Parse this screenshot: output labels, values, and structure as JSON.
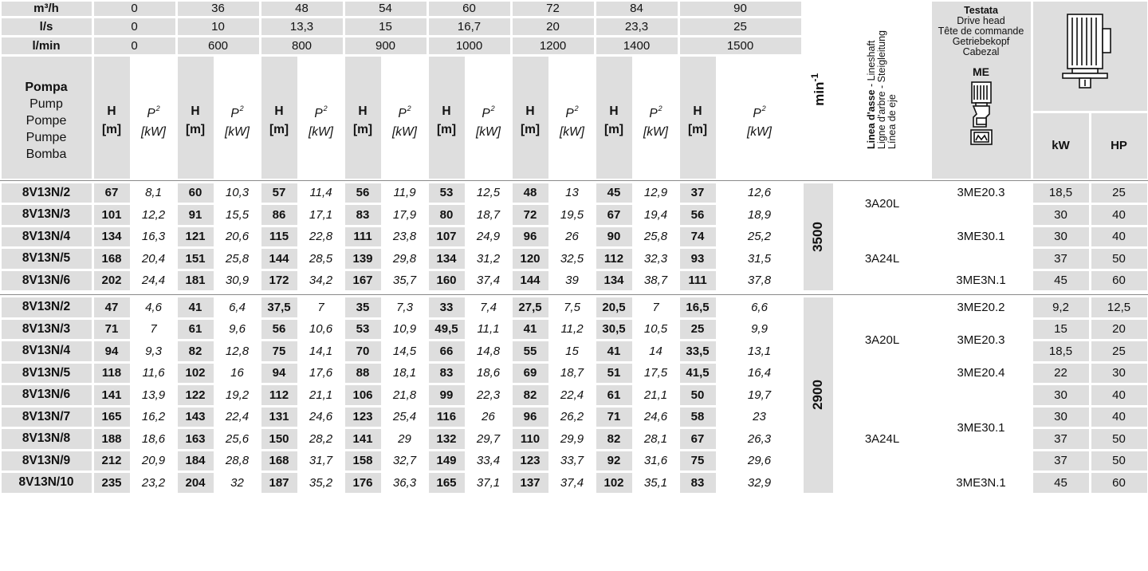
{
  "header": {
    "units": [
      "m³/h",
      "l/s",
      "l/min"
    ],
    "flow_values": [
      [
        "0",
        "36",
        "48",
        "54",
        "60",
        "72",
        "84",
        "90"
      ],
      [
        "0",
        "10",
        "13,3",
        "15",
        "16,7",
        "20",
        "23,3",
        "25"
      ],
      [
        "0",
        "600",
        "800",
        "900",
        "1000",
        "1200",
        "1400",
        "1500"
      ]
    ],
    "pump_label": {
      "title": "Pompa",
      "translations": [
        "Pump",
        "Pompe",
        "Pumpe",
        "Bomba"
      ]
    },
    "h_label": [
      "H",
      "[m]"
    ],
    "p_label": [
      "P",
      "2",
      "[kW]"
    ],
    "min_label": "min",
    "min_exp": "-1",
    "lineshaft": {
      "bold": "Linea d'asse",
      "line1_rest": " - Lineshaft",
      "line2": "Ligne d'arbre - Steigleitung",
      "line3": "Línea de eje"
    },
    "drive_head": {
      "title": "Testata",
      "translations": [
        "Drive head",
        "Tête de commande",
        "Getriebekopf",
        "Cabezal"
      ],
      "code": "ME"
    },
    "kw": "kW",
    "hp": "HP",
    "motor_icon": "electric-motor-icon",
    "drive_head_icon": "drive-head-pump-icon"
  },
  "groups": [
    {
      "rpm": "3500",
      "rows": [
        {
          "name": "8V13N/2",
          "values": [
            [
              "67",
              "8,1"
            ],
            [
              "60",
              "10,3"
            ],
            [
              "57",
              "11,4"
            ],
            [
              "56",
              "11,9"
            ],
            [
              "53",
              "12,5"
            ],
            [
              "48",
              "13"
            ],
            [
              "45",
              "12,9"
            ],
            [
              "37",
              "12,6"
            ]
          ],
          "kw": "18,5",
          "hp": "25"
        },
        {
          "name": "8V13N/3",
          "values": [
            [
              "101",
              "12,2"
            ],
            [
              "91",
              "15,5"
            ],
            [
              "86",
              "17,1"
            ],
            [
              "83",
              "17,9"
            ],
            [
              "80",
              "18,7"
            ],
            [
              "72",
              "19,5"
            ],
            [
              "67",
              "19,4"
            ],
            [
              "56",
              "18,9"
            ]
          ],
          "kw": "30",
          "hp": "40"
        },
        {
          "name": "8V13N/4",
          "values": [
            [
              "134",
              "16,3"
            ],
            [
              "121",
              "20,6"
            ],
            [
              "115",
              "22,8"
            ],
            [
              "111",
              "23,8"
            ],
            [
              "107",
              "24,9"
            ],
            [
              "96",
              "26"
            ],
            [
              "90",
              "25,8"
            ],
            [
              "74",
              "25,2"
            ]
          ],
          "kw": "30",
          "hp": "40"
        },
        {
          "name": "8V13N/5",
          "values": [
            [
              "168",
              "20,4"
            ],
            [
              "151",
              "25,8"
            ],
            [
              "144",
              "28,5"
            ],
            [
              "139",
              "29,8"
            ],
            [
              "134",
              "31,2"
            ],
            [
              "120",
              "32,5"
            ],
            [
              "112",
              "32,3"
            ],
            [
              "93",
              "31,5"
            ]
          ],
          "kw": "37",
          "hp": "50"
        },
        {
          "name": "8V13N/6",
          "values": [
            [
              "202",
              "24,4"
            ],
            [
              "181",
              "30,9"
            ],
            [
              "172",
              "34,2"
            ],
            [
              "167",
              "35,7"
            ],
            [
              "160",
              "37,4"
            ],
            [
              "144",
              "39"
            ],
            [
              "134",
              "38,7"
            ],
            [
              "111",
              "37,8"
            ]
          ],
          "kw": "45",
          "hp": "60"
        }
      ],
      "lineshaft": [
        {
          "label": "3A20L",
          "start": 0,
          "span": 2
        },
        {
          "label": "3A24L",
          "start": 2,
          "span": 3
        }
      ],
      "drive_head": [
        {
          "label": "3ME20.3",
          "start": 0,
          "span": 1
        },
        {
          "label": "3ME30.1",
          "start": 1,
          "span": 3
        },
        {
          "label": "3ME3N.1",
          "start": 4,
          "span": 1
        }
      ]
    },
    {
      "rpm": "2900",
      "rows": [
        {
          "name": "8V13N/2",
          "values": [
            [
              "47",
              "4,6"
            ],
            [
              "41",
              "6,4"
            ],
            [
              "37,5",
              "7"
            ],
            [
              "35",
              "7,3"
            ],
            [
              "33",
              "7,4"
            ],
            [
              "27,5",
              "7,5"
            ],
            [
              "20,5",
              "7"
            ],
            [
              "16,5",
              "6,6"
            ]
          ],
          "kw": "9,2",
          "hp": "12,5"
        },
        {
          "name": "8V13N/3",
          "values": [
            [
              "71",
              "7"
            ],
            [
              "61",
              "9,6"
            ],
            [
              "56",
              "10,6"
            ],
            [
              "53",
              "10,9"
            ],
            [
              "49,5",
              "11,1"
            ],
            [
              "41",
              "11,2"
            ],
            [
              "30,5",
              "10,5"
            ],
            [
              "25",
              "9,9"
            ]
          ],
          "kw": "15",
          "hp": "20"
        },
        {
          "name": "8V13N/4",
          "values": [
            [
              "94",
              "9,3"
            ],
            [
              "82",
              "12,8"
            ],
            [
              "75",
              "14,1"
            ],
            [
              "70",
              "14,5"
            ],
            [
              "66",
              "14,8"
            ],
            [
              "55",
              "15"
            ],
            [
              "41",
              "14"
            ],
            [
              "33,5",
              "13,1"
            ]
          ],
          "kw": "18,5",
          "hp": "25"
        },
        {
          "name": "8V13N/5",
          "values": [
            [
              "118",
              "11,6"
            ],
            [
              "102",
              "16"
            ],
            [
              "94",
              "17,6"
            ],
            [
              "88",
              "18,1"
            ],
            [
              "83",
              "18,6"
            ],
            [
              "69",
              "18,7"
            ],
            [
              "51",
              "17,5"
            ],
            [
              "41,5",
              "16,4"
            ]
          ],
          "kw": "22",
          "hp": "30"
        },
        {
          "name": "8V13N/6",
          "values": [
            [
              "141",
              "13,9"
            ],
            [
              "122",
              "19,2"
            ],
            [
              "112",
              "21,1"
            ],
            [
              "106",
              "21,8"
            ],
            [
              "99",
              "22,3"
            ],
            [
              "82",
              "22,4"
            ],
            [
              "61",
              "21,1"
            ],
            [
              "50",
              "19,7"
            ]
          ],
          "kw": "30",
          "hp": "40"
        },
        {
          "name": "8V13N/7",
          "values": [
            [
              "165",
              "16,2"
            ],
            [
              "143",
              "22,4"
            ],
            [
              "131",
              "24,6"
            ],
            [
              "123",
              "25,4"
            ],
            [
              "116",
              "26"
            ],
            [
              "96",
              "26,2"
            ],
            [
              "71",
              "24,6"
            ],
            [
              "58",
              "23"
            ]
          ],
          "kw": "30",
          "hp": "40"
        },
        {
          "name": "8V13N/8",
          "values": [
            [
              "188",
              "18,6"
            ],
            [
              "163",
              "25,6"
            ],
            [
              "150",
              "28,2"
            ],
            [
              "141",
              "29"
            ],
            [
              "132",
              "29,7"
            ],
            [
              "110",
              "29,9"
            ],
            [
              "82",
              "28,1"
            ],
            [
              "67",
              "26,3"
            ]
          ],
          "kw": "37",
          "hp": "50"
        },
        {
          "name": "8V13N/9",
          "values": [
            [
              "212",
              "20,9"
            ],
            [
              "184",
              "28,8"
            ],
            [
              "168",
              "31,7"
            ],
            [
              "158",
              "32,7"
            ],
            [
              "149",
              "33,4"
            ],
            [
              "123",
              "33,7"
            ],
            [
              "92",
              "31,6"
            ],
            [
              "75",
              "29,6"
            ]
          ],
          "kw": "37",
          "hp": "50"
        },
        {
          "name": "8V13N/10",
          "values": [
            [
              "235",
              "23,2"
            ],
            [
              "204",
              "32"
            ],
            [
              "187",
              "35,2"
            ],
            [
              "176",
              "36,3"
            ],
            [
              "165",
              "37,1"
            ],
            [
              "137",
              "37,4"
            ],
            [
              "102",
              "35,1"
            ],
            [
              "83",
              "32,9"
            ]
          ],
          "kw": "45",
          "hp": "60"
        }
      ],
      "lineshaft": [
        {
          "label": "3A20L",
          "start": 0,
          "span": 4
        },
        {
          "label": "3A24L",
          "start": 4,
          "span": 5
        }
      ],
      "drive_head": [
        {
          "label": "3ME20.2",
          "start": 0,
          "span": 1
        },
        {
          "label": "3ME20.3",
          "start": 1,
          "span": 2
        },
        {
          "label": "3ME20.4",
          "start": 3,
          "span": 1
        },
        {
          "label": "3ME30.1",
          "start": 4,
          "span": 4
        },
        {
          "label": "3ME3N.1",
          "start": 8,
          "span": 1
        }
      ]
    }
  ]
}
